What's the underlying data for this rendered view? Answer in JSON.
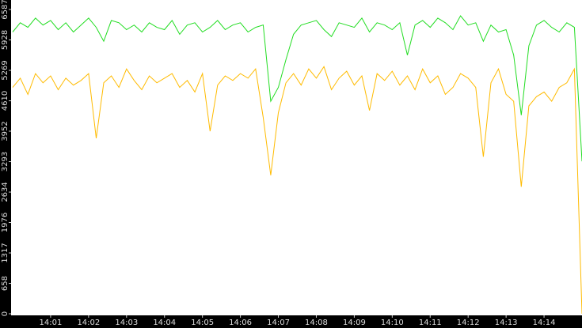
{
  "chart_data": {
    "type": "line",
    "x": [
      0,
      0.2,
      0.4,
      0.6,
      0.8,
      1,
      1.2,
      1.4,
      1.6,
      1.8,
      2,
      2.2,
      2.4,
      2.6,
      2.8,
      3,
      3.2,
      3.4,
      3.6,
      3.8,
      4,
      4.2,
      4.4,
      4.6,
      4.8,
      5,
      5.2,
      5.4,
      5.6,
      5.8,
      6,
      6.2,
      6.4,
      6.6,
      6.8,
      7,
      7.2,
      7.4,
      7.6,
      7.8,
      8,
      8.2,
      8.4,
      8.6,
      8.8,
      9,
      9.2,
      9.4,
      9.6,
      9.8,
      10,
      10.2,
      10.4,
      10.6,
      10.8,
      11,
      11.2,
      11.4,
      11.6,
      11.8,
      12,
      12.2,
      12.4,
      12.6,
      12.8,
      13,
      13.2,
      13.4,
      13.6,
      13.8,
      14,
      14.2,
      14.4,
      14.6,
      14.8,
      15
    ],
    "series": [
      {
        "color": "#22dd22",
        "values": [
          6100,
          6300,
          6200,
          6400,
          6250,
          6350,
          6150,
          6300,
          6100,
          6250,
          6400,
          6200,
          5900,
          6350,
          6300,
          6150,
          6250,
          6100,
          6300,
          6200,
          6150,
          6350,
          6050,
          6250,
          6300,
          6100,
          6200,
          6350,
          6150,
          6250,
          6300,
          6100,
          6200,
          6250,
          4600,
          4900,
          5500,
          6050,
          6250,
          6300,
          6350,
          6150,
          6000,
          6300,
          6250,
          6200,
          6400,
          6100,
          6300,
          6250,
          6150,
          6300,
          5600,
          6250,
          6350,
          6200,
          6400,
          6300,
          6150,
          6450,
          6250,
          6300,
          5900,
          6250,
          6100,
          6150,
          5600,
          4300,
          5800,
          6250,
          6350,
          6200,
          6100,
          6300,
          6200,
          3300
        ]
      },
      {
        "color": "#ffbb00",
        "values": [
          4900,
          5100,
          4750,
          5200,
          5000,
          5150,
          4850,
          5100,
          4950,
          5050,
          5200,
          3800,
          5000,
          5150,
          4900,
          5300,
          5050,
          4850,
          5150,
          5000,
          5100,
          5200,
          4900,
          5050,
          4800,
          5200,
          3950,
          4950,
          5150,
          5050,
          5200,
          5100,
          5300,
          4250,
          3000,
          4350,
          5000,
          5200,
          4950,
          5300,
          5100,
          5350,
          4850,
          5100,
          5250,
          4950,
          5150,
          4400,
          5200,
          5050,
          5250,
          4950,
          5150,
          4850,
          5300,
          5000,
          5150,
          4750,
          4900,
          5200,
          5100,
          4900,
          3400,
          5000,
          5300,
          4750,
          4600,
          2750,
          4500,
          4700,
          4800,
          4600,
          4900,
          5000,
          5300,
          0
        ]
      }
    ],
    "xlim": [
      0,
      15
    ],
    "xticks": [
      {
        "value": 1,
        "label": "14:01"
      },
      {
        "value": 2,
        "label": "14:02"
      },
      {
        "value": 3,
        "label": "14:03"
      },
      {
        "value": 4,
        "label": "14:04"
      },
      {
        "value": 5,
        "label": "14:05"
      },
      {
        "value": 6,
        "label": "14:06"
      },
      {
        "value": 7,
        "label": "14:07"
      },
      {
        "value": 8,
        "label": "14:08"
      },
      {
        "value": 9,
        "label": "14:09"
      },
      {
        "value": 10,
        "label": "14:10"
      },
      {
        "value": 11,
        "label": "14:11"
      },
      {
        "value": 12,
        "label": "14:12"
      },
      {
        "value": 13,
        "label": "14:13"
      },
      {
        "value": 14,
        "label": "14:14"
      }
    ],
    "ylim": [
      0,
      6587
    ],
    "yticks": [
      0,
      658,
      1317,
      1976,
      2634,
      3293,
      3952,
      4610,
      5269,
      5928,
      6587
    ]
  }
}
